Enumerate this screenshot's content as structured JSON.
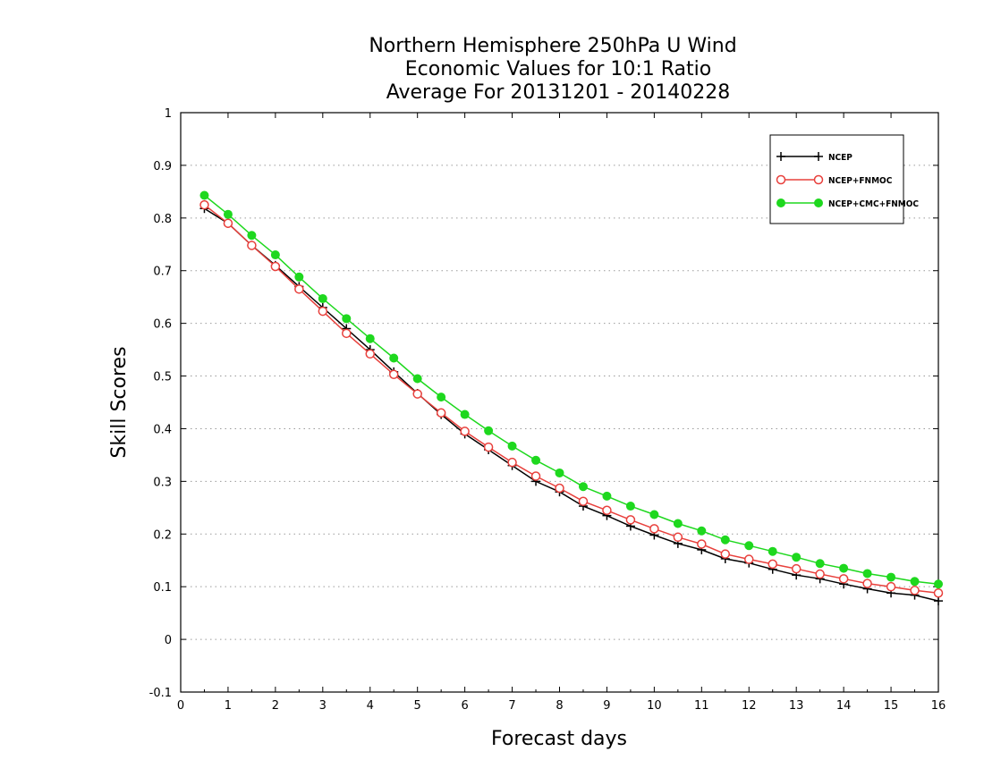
{
  "chart_data": {
    "type": "line",
    "title": [
      "Northern Hemisphere 250hPa U Wind",
      "Economic Values for 10:1 Ratio",
      "Average For 20131201 - 20140228"
    ],
    "xlabel": "Forecast days",
    "ylabel": "Skill Scores",
    "xlim": [
      0,
      16
    ],
    "ylim": [
      -0.1,
      1
    ],
    "xticks": [
      0,
      1,
      2,
      3,
      4,
      5,
      6,
      7,
      8,
      9,
      10,
      11,
      12,
      13,
      14,
      15,
      16
    ],
    "yticks": [
      -0.1,
      0,
      0.1,
      0.2,
      0.3,
      0.4,
      0.5,
      0.6,
      0.7,
      0.8,
      0.9,
      1
    ],
    "ytick_labels": [
      "-0.1",
      "0",
      "0.1",
      "0.2",
      "0.3",
      "0.4",
      "0.5",
      "0.6",
      "0.7",
      "0.8",
      "0.9",
      "1"
    ],
    "grid": true,
    "legend_position": "top-right",
    "x": [
      0.5,
      1,
      1.5,
      2,
      2.5,
      3,
      3.5,
      4,
      4.5,
      5,
      5.5,
      6,
      6.5,
      7,
      7.5,
      8,
      8.5,
      9,
      9.5,
      10,
      10.5,
      11,
      11.5,
      12,
      12.5,
      13,
      13.5,
      14,
      14.5,
      15,
      15.5,
      16
    ],
    "series": [
      {
        "name": "NCEP",
        "color": "#000000",
        "marker": "plus",
        "values": [
          0.818,
          0.79,
          0.748,
          0.71,
          0.67,
          0.63,
          0.59,
          0.55,
          0.508,
          0.467,
          0.427,
          0.39,
          0.36,
          0.33,
          0.3,
          0.28,
          0.253,
          0.235,
          0.215,
          0.198,
          0.182,
          0.17,
          0.153,
          0.145,
          0.133,
          0.122,
          0.115,
          0.105,
          0.096,
          0.088,
          0.084,
          0.073
        ]
      },
      {
        "name": "NCEP+FNMOC",
        "color": "#e8403c",
        "marker": "open-circle",
        "values": [
          0.825,
          0.79,
          0.748,
          0.708,
          0.665,
          0.623,
          0.581,
          0.542,
          0.503,
          0.466,
          0.43,
          0.395,
          0.365,
          0.336,
          0.31,
          0.287,
          0.262,
          0.245,
          0.227,
          0.21,
          0.194,
          0.181,
          0.162,
          0.152,
          0.143,
          0.134,
          0.124,
          0.115,
          0.106,
          0.1,
          0.093,
          0.088
        ]
      },
      {
        "name": "NCEP+CMC+FNMOC",
        "color": "#1ed81e",
        "marker": "filled-circle",
        "values": [
          0.843,
          0.807,
          0.767,
          0.73,
          0.688,
          0.647,
          0.609,
          0.571,
          0.534,
          0.495,
          0.46,
          0.427,
          0.396,
          0.367,
          0.34,
          0.316,
          0.29,
          0.272,
          0.253,
          0.237,
          0.22,
          0.206,
          0.189,
          0.178,
          0.167,
          0.156,
          0.144,
          0.135,
          0.125,
          0.118,
          0.11,
          0.105
        ]
      }
    ]
  }
}
